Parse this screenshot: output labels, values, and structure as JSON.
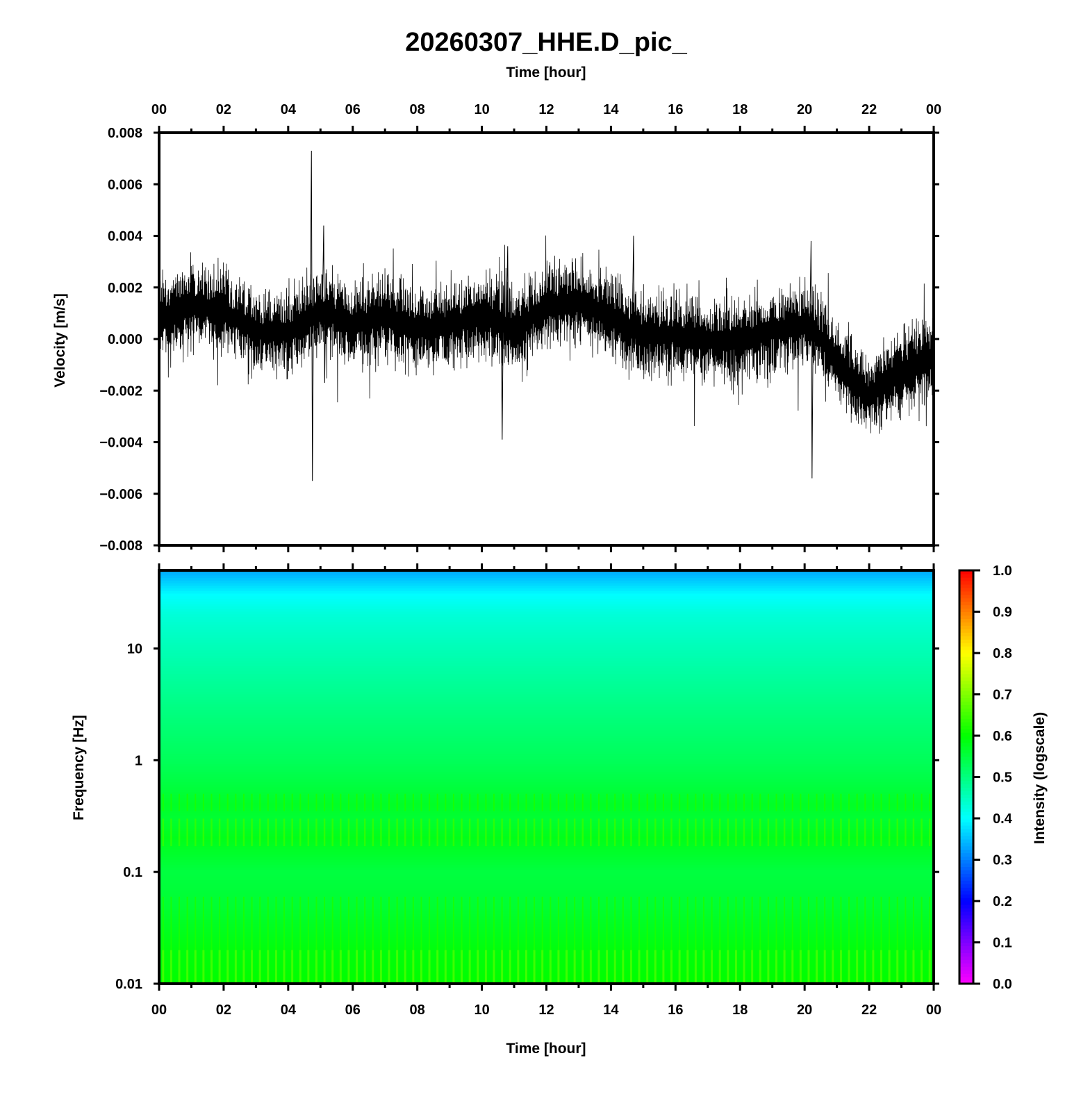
{
  "title": "20260307_HHE.D_pic_",
  "chart_data": [
    {
      "type": "line",
      "name": "seismogram",
      "xlabel": "Time [hour]",
      "ylabel": "Velocity [m/s]",
      "xlim": [
        0,
        24
      ],
      "ylim": [
        -0.008,
        0.008
      ],
      "x_ticks": [
        "00",
        "02",
        "04",
        "06",
        "08",
        "10",
        "12",
        "14",
        "16",
        "18",
        "20",
        "22",
        "00"
      ],
      "y_ticks": [
        "0.008",
        "0.006",
        "0.004",
        "0.002",
        "0.000",
        "−0.002",
        "−0.004",
        "−0.006",
        "−0.008"
      ],
      "trend": {
        "x": [
          0,
          1,
          2,
          3,
          4,
          5,
          6,
          7,
          8,
          9,
          10,
          11,
          12,
          13,
          14,
          15,
          16,
          17,
          18,
          19,
          20,
          20.5,
          21,
          22,
          23,
          24
        ],
        "y": [
          0.0008,
          0.0013,
          0.0011,
          0.0003,
          0.0002,
          0.0011,
          0.0006,
          0.0009,
          0.0004,
          0.0005,
          0.001,
          0.0003,
          0.0013,
          0.0014,
          0.0009,
          0.0001,
          0.0002,
          0.0,
          -0.0001,
          0.0003,
          0.0006,
          0.0,
          -0.001,
          -0.0022,
          -0.0012,
          -0.0008
        ]
      },
      "spikes": [
        {
          "x": 4.72,
          "y_max": 0.0073,
          "y_min": -0.0055
        },
        {
          "x": 5.1,
          "y_max": 0.0044,
          "y_min": -0.0017
        },
        {
          "x": 10.6,
          "y_max": 0.0012,
          "y_min": -0.0039
        },
        {
          "x": 10.8,
          "y_max": 0.0036,
          "y_min": -0.001
        },
        {
          "x": 14.7,
          "y_max": 0.004,
          "y_min": -0.0005
        },
        {
          "x": 20.2,
          "y_max": 0.0038,
          "y_min": -0.0054
        }
      ]
    },
    {
      "type": "heatmap",
      "name": "spectrogram",
      "xlabel": "Time [hour]",
      "ylabel": "Frequency [Hz]",
      "xlim": [
        0,
        24
      ],
      "ylim": [
        0.01,
        50
      ],
      "y_scale": "log",
      "x_ticks": [
        "00",
        "02",
        "04",
        "06",
        "08",
        "10",
        "12",
        "14",
        "16",
        "18",
        "20",
        "22",
        "00"
      ],
      "y_ticks": [
        {
          "value": 10,
          "label": "10"
        },
        {
          "value": 1,
          "label": "1"
        },
        {
          "value": 0.1,
          "label": "0.1"
        },
        {
          "value": 0.01,
          "label": "0.01"
        }
      ],
      "intensity_by_frequency": {
        "freq": [
          50,
          40,
          30,
          20,
          12,
          5,
          2,
          1,
          0.6,
          0.4,
          0.3,
          0.2,
          0.1,
          0.05,
          0.02,
          0.01
        ],
        "intensity": [
          0.33,
          0.36,
          0.4,
          0.43,
          0.45,
          0.48,
          0.51,
          0.53,
          0.55,
          0.57,
          0.56,
          0.58,
          0.55,
          0.56,
          0.59,
          0.6
        ]
      },
      "colorbar": {
        "label": "Intensity (logscale)",
        "range": [
          0.0,
          1.0
        ],
        "ticks": [
          "0.0",
          "0.1",
          "0.2",
          "0.3",
          "0.4",
          "0.5",
          "0.6",
          "0.7",
          "0.8",
          "0.9",
          "1.0"
        ],
        "colormap": [
          "#ff00ff",
          "#0000ff",
          "#00ffff",
          "#00ff00",
          "#ffff00",
          "#ff0000"
        ]
      }
    }
  ]
}
